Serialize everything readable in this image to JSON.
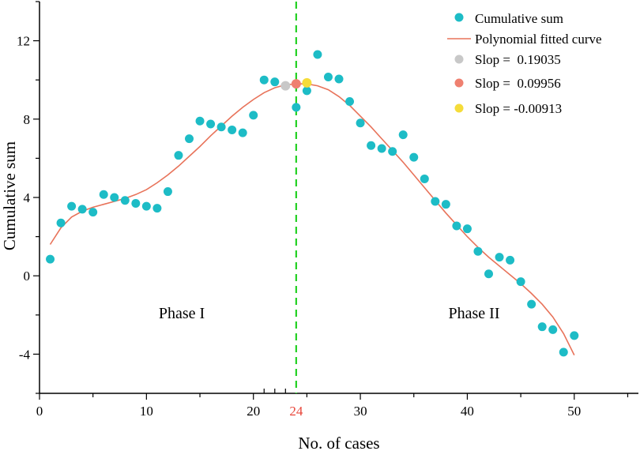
{
  "chart_data": {
    "type": "scatter",
    "title": "",
    "xlabel": "No. of cases",
    "ylabel": "Cumulative sum",
    "xlim": [
      0,
      56
    ],
    "ylim": [
      -6,
      14
    ],
    "xticks": [
      0,
      10,
      20,
      24,
      30,
      40,
      50
    ],
    "xtick_labels": [
      "0",
      "10",
      "20",
      "24",
      "30",
      "40",
      "50"
    ],
    "highlight_tick": {
      "value": 24,
      "label": "24",
      "color": "#e8463a"
    },
    "yticks": [
      -4,
      0,
      4,
      8,
      12
    ],
    "ytick_labels": [
      "-4",
      "0",
      "4",
      "8",
      "12"
    ],
    "grid": false,
    "legend_position": "top-right",
    "series": [
      {
        "name": "Cumulative sum",
        "kind": "scatter",
        "color": "#1dbcc6",
        "x": [
          1,
          2,
          3,
          4,
          5,
          6,
          7,
          8,
          9,
          10,
          11,
          12,
          13,
          14,
          15,
          16,
          17,
          18,
          19,
          20,
          21,
          22,
          24,
          25,
          26,
          27,
          28,
          29,
          30,
          31,
          32,
          33,
          34,
          35,
          36,
          37,
          38,
          39,
          40,
          41,
          42,
          43,
          44,
          45,
          46,
          47,
          48,
          49,
          50
        ],
        "y": [
          0.85,
          2.7,
          3.55,
          3.4,
          3.25,
          4.15,
          4.0,
          3.85,
          3.7,
          3.55,
          3.45,
          4.3,
          6.15,
          7.0,
          7.9,
          7.75,
          7.6,
          7.45,
          7.3,
          8.2,
          10.0,
          9.9,
          8.6,
          9.45,
          11.3,
          10.15,
          10.05,
          8.9,
          7.8,
          6.65,
          6.5,
          6.35,
          7.2,
          6.05,
          4.95,
          3.8,
          3.65,
          2.55,
          2.4,
          1.25,
          0.1,
          0.95,
          0.8,
          -0.3,
          -1.45,
          -2.6,
          -2.75,
          -3.9,
          -3.05
        ]
      },
      {
        "name": "Polynomial fitted curve",
        "kind": "line",
        "color": "#e8735a",
        "x": [
          1,
          2,
          3,
          4,
          5,
          6,
          7,
          8,
          9,
          10,
          11,
          12,
          13,
          14,
          15,
          16,
          17,
          18,
          19,
          20,
          21,
          22,
          23,
          24,
          25,
          26,
          27,
          28,
          29,
          30,
          31,
          32,
          33,
          34,
          35,
          36,
          37,
          38,
          39,
          40,
          41,
          42,
          43,
          44,
          45,
          46,
          47,
          48,
          49,
          50
        ],
        "y": [
          1.6,
          2.45,
          3.0,
          3.3,
          3.5,
          3.65,
          3.8,
          3.95,
          4.15,
          4.4,
          4.75,
          5.15,
          5.6,
          6.1,
          6.6,
          7.15,
          7.65,
          8.15,
          8.6,
          9.0,
          9.35,
          9.6,
          9.75,
          9.8,
          9.8,
          9.7,
          9.5,
          9.15,
          8.7,
          8.15,
          7.6,
          7.0,
          6.4,
          5.8,
          5.15,
          4.5,
          3.85,
          3.2,
          2.6,
          2.0,
          1.45,
          0.95,
          0.5,
          0.05,
          -0.4,
          -0.9,
          -1.45,
          -2.1,
          -2.95,
          -4.05
        ]
      }
    ],
    "highlight_points": [
      {
        "name": "Slop =  0.19035",
        "x": 23,
        "y": 9.7,
        "color": "#c8c8c8"
      },
      {
        "name": "Slop =  0.09956",
        "x": 24,
        "y": 9.8,
        "color": "#ef8070"
      },
      {
        "name": "Slop = -0.00913",
        "x": 25,
        "y": 9.85,
        "color": "#f5dc3a"
      }
    ],
    "vertical_line": {
      "x": 24,
      "color": "#22d022",
      "style": "dashed"
    },
    "annotations": [
      {
        "text": "Phase I",
        "x": 13,
        "y": -2.3
      },
      {
        "text": "Phase  II",
        "x": 40,
        "y": -2.3
      }
    ]
  }
}
